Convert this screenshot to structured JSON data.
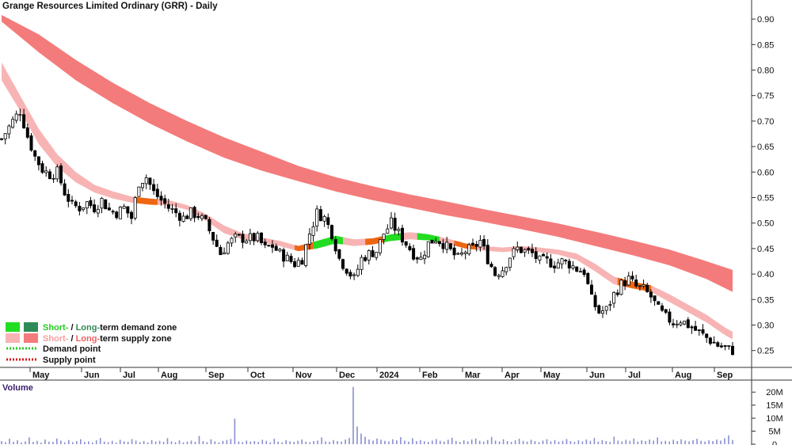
{
  "chart_data": {
    "type": "candlestick",
    "title": "Grange Resources Limited Ordinary (GRR) - Daily",
    "price_axis": {
      "ticks": [
        "0.90",
        "0.85",
        "0.80",
        "0.75",
        "0.70",
        "0.65",
        "0.60",
        "0.55",
        "0.50",
        "0.45",
        "0.40",
        "0.35",
        "0.30",
        "0.25"
      ],
      "tick_values": [
        0.9,
        0.85,
        0.8,
        0.75,
        0.7,
        0.65,
        0.6,
        0.55,
        0.5,
        0.45,
        0.4,
        0.35,
        0.3,
        0.25
      ],
      "ylim": [
        0.22,
        0.925
      ]
    },
    "volume_axis": {
      "title": "Volume",
      "ticks": [
        "20M",
        "15M",
        "10M",
        "5M",
        "0"
      ],
      "tick_values": [
        20,
        15,
        10,
        5,
        0
      ],
      "ylim": [
        0,
        24
      ]
    },
    "months": [
      "May",
      "Jun",
      "Jul",
      "Aug",
      "Sep",
      "Oct",
      "Nov",
      "Dec",
      "2024",
      "Feb",
      "Mar",
      "Apr",
      "May",
      "Jun",
      "Jul",
      "Aug",
      "Sep"
    ],
    "close_path": [
      [
        0,
        0.665
      ],
      [
        3,
        0.7
      ],
      [
        5,
        0.72
      ],
      [
        7,
        0.67
      ],
      [
        9,
        0.63
      ],
      [
        11,
        0.605
      ],
      [
        13,
        0.595
      ],
      [
        15,
        0.6
      ],
      [
        17,
        0.56
      ],
      [
        19,
        0.535
      ],
      [
        21,
        0.53
      ],
      [
        23,
        0.54
      ],
      [
        25,
        0.53
      ],
      [
        27,
        0.545
      ],
      [
        29,
        0.525
      ],
      [
        31,
        0.52
      ],
      [
        33,
        0.53
      ],
      [
        35,
        0.51
      ],
      [
        37,
        0.58
      ],
      [
        39,
        0.59
      ],
      [
        41,
        0.56
      ],
      [
        43,
        0.545
      ],
      [
        45,
        0.53
      ],
      [
        47,
        0.52
      ],
      [
        49,
        0.51
      ],
      [
        51,
        0.52
      ],
      [
        53,
        0.515
      ],
      [
        55,
        0.5
      ],
      [
        57,
        0.47
      ],
      [
        59,
        0.44
      ],
      [
        61,
        0.46
      ],
      [
        63,
        0.47
      ],
      [
        65,
        0.47
      ],
      [
        67,
        0.47
      ],
      [
        69,
        0.47
      ],
      [
        71,
        0.45
      ],
      [
        73,
        0.455
      ],
      [
        75,
        0.44
      ],
      [
        77,
        0.43
      ],
      [
        79,
        0.42
      ],
      [
        81,
        0.43
      ],
      [
        83,
        0.48
      ],
      [
        85,
        0.52
      ],
      [
        87,
        0.51
      ],
      [
        89,
        0.48
      ],
      [
        91,
        0.43
      ],
      [
        93,
        0.41
      ],
      [
        95,
        0.39
      ],
      [
        97,
        0.43
      ],
      [
        99,
        0.44
      ],
      [
        101,
        0.445
      ],
      [
        103,
        0.48
      ],
      [
        105,
        0.5
      ],
      [
        107,
        0.48
      ],
      [
        109,
        0.46
      ],
      [
        111,
        0.44
      ],
      [
        113,
        0.43
      ],
      [
        115,
        0.46
      ],
      [
        117,
        0.47
      ],
      [
        119,
        0.46
      ],
      [
        121,
        0.445
      ],
      [
        123,
        0.43
      ],
      [
        125,
        0.445
      ],
      [
        127,
        0.45
      ],
      [
        129,
        0.465
      ],
      [
        131,
        0.43
      ],
      [
        133,
        0.4
      ],
      [
        135,
        0.41
      ],
      [
        137,
        0.435
      ],
      [
        139,
        0.45
      ],
      [
        141,
        0.445
      ],
      [
        143,
        0.44
      ],
      [
        145,
        0.425
      ],
      [
        147,
        0.425
      ],
      [
        149,
        0.42
      ],
      [
        151,
        0.425
      ],
      [
        153,
        0.42
      ],
      [
        155,
        0.41
      ],
      [
        157,
        0.405
      ],
      [
        159,
        0.35
      ],
      [
        161,
        0.325
      ],
      [
        163,
        0.33
      ],
      [
        165,
        0.36
      ],
      [
        167,
        0.38
      ],
      [
        169,
        0.39
      ],
      [
        171,
        0.375
      ],
      [
        173,
        0.37
      ],
      [
        175,
        0.355
      ],
      [
        177,
        0.33
      ],
      [
        179,
        0.315
      ],
      [
        181,
        0.305
      ],
      [
        183,
        0.31
      ],
      [
        185,
        0.3
      ],
      [
        187,
        0.29
      ],
      [
        189,
        0.28
      ],
      [
        191,
        0.27
      ],
      [
        193,
        0.26
      ],
      [
        195,
        0.255
      ],
      [
        197,
        0.25
      ]
    ],
    "volume_values": [
      1.2,
      0.8,
      2.1,
      0.9,
      1.5,
      0.7,
      1.1,
      2.6,
      0.9,
      1.3,
      0.6,
      1.8,
      1.0,
      0.9,
      2.2,
      1.4,
      0.7,
      1.6,
      0.8,
      1.2,
      1.9,
      0.9,
      1.1,
      0.7,
      1.5,
      2.4,
      1.0,
      0.8,
      1.3,
      0.6,
      1.7,
      1.1,
      0.9,
      2.0,
      1.4,
      0.8,
      1.2,
      0.7,
      1.6,
      1.0,
      1.3,
      0.9,
      2.3,
      1.1,
      0.8,
      1.5,
      0.7,
      1.0,
      1.4,
      0.9,
      3.2,
      1.2,
      0.8,
      1.9,
      1.1,
      0.7,
      1.3,
      1.6,
      2.0,
      9.8,
      1.1,
      0.8,
      1.4,
      1.0,
      1.2,
      0.9,
      1.7,
      1.3,
      0.8,
      2.1,
      1.0,
      0.7,
      1.5,
      1.1,
      0.9,
      1.3,
      1.8,
      1.0,
      0.8,
      1.2,
      1.4,
      2.6,
      1.1,
      0.9,
      1.6,
      1.2,
      1.0,
      1.8,
      2.4,
      22.0,
      6.8,
      4.1,
      2.9,
      1.8,
      1.4,
      2.2,
      1.7,
      1.3,
      1.1,
      1.9,
      1.5,
      2.7,
      1.4,
      1.0,
      2.3,
      1.2,
      1.6,
      1.1,
      0.9,
      1.4,
      2.0,
      1.3,
      1.0,
      1.7,
      2.5,
      1.2,
      0.9,
      1.5,
      1.1,
      1.8,
      2.2,
      1.3,
      1.0,
      1.6,
      2.8,
      1.4,
      1.1,
      1.9,
      1.2,
      0.9,
      1.5,
      2.1,
      1.3,
      1.0,
      1.7,
      1.2,
      0.8,
      1.4,
      1.9,
      1.1,
      1.6,
      1.0,
      1.3,
      2.0,
      1.2,
      0.9,
      1.5,
      1.1,
      1.8,
      1.3,
      2.4,
      1.0,
      1.6,
      1.2,
      0.9,
      2.9,
      1.4,
      1.1,
      1.7,
      1.3,
      2.2,
      1.0,
      1.5,
      1.2,
      1.8,
      1.4,
      2.6,
      1.1,
      1.3,
      1.0,
      1.7,
      1.2,
      1.9,
      1.4,
      1.1,
      1.6,
      2.1,
      1.3,
      1.0,
      1.5,
      1.2,
      1.8,
      1.4,
      2.3,
      3.4,
      1.6
    ],
    "long_term_supply_zone": {
      "x": [
        0,
        10,
        20,
        30,
        40,
        50,
        60,
        70,
        80,
        90,
        100,
        110,
        120,
        130,
        140,
        150,
        160,
        170,
        180,
        190,
        197
      ],
      "top": [
        0.908,
        0.87,
        0.82,
        0.775,
        0.735,
        0.7,
        0.668,
        0.64,
        0.612,
        0.59,
        0.572,
        0.556,
        0.542,
        0.527,
        0.513,
        0.499,
        0.483,
        0.466,
        0.448,
        0.425,
        0.408
      ],
      "bottom": [
        0.895,
        0.835,
        0.78,
        0.735,
        0.695,
        0.66,
        0.628,
        0.603,
        0.582,
        0.562,
        0.545,
        0.53,
        0.515,
        0.502,
        0.488,
        0.473,
        0.455,
        0.437,
        0.417,
        0.39,
        0.365
      ]
    },
    "short_term_supply_zone": {
      "x": [
        0,
        5,
        10,
        15,
        20,
        25,
        30,
        35,
        40,
        45,
        50,
        55,
        60,
        65,
        70,
        75,
        80,
        85,
        90,
        95,
        100,
        105,
        110,
        115,
        120,
        125,
        130,
        135,
        140,
        145,
        150,
        155,
        160,
        165,
        170,
        175,
        180,
        185,
        190,
        195,
        197
      ],
      "top": [
        0.815,
        0.75,
        0.685,
        0.635,
        0.6,
        0.575,
        0.562,
        0.552,
        0.548,
        0.545,
        0.535,
        0.518,
        0.495,
        0.48,
        0.472,
        0.465,
        0.455,
        0.465,
        0.475,
        0.468,
        0.47,
        0.478,
        0.482,
        0.478,
        0.47,
        0.46,
        0.455,
        0.452,
        0.455,
        0.452,
        0.448,
        0.44,
        0.42,
        0.395,
        0.385,
        0.378,
        0.36,
        0.34,
        0.32,
        0.295,
        0.287
      ],
      "bottom": [
        0.78,
        0.72,
        0.655,
        0.61,
        0.58,
        0.56,
        0.548,
        0.54,
        0.536,
        0.535,
        0.526,
        0.505,
        0.48,
        0.468,
        0.462,
        0.455,
        0.445,
        0.45,
        0.46,
        0.455,
        0.458,
        0.465,
        0.468,
        0.466,
        0.46,
        0.45,
        0.446,
        0.443,
        0.446,
        0.443,
        0.438,
        0.428,
        0.405,
        0.38,
        0.372,
        0.365,
        0.345,
        0.325,
        0.305,
        0.28,
        0.272
      ]
    },
    "short_term_demand_segments": [
      [
        84,
        92
      ],
      [
        102,
        108
      ],
      [
        112,
        118
      ]
    ],
    "supply_point_segments": [
      [
        36,
        42
      ],
      [
        79,
        84
      ],
      [
        98,
        103
      ],
      [
        122,
        128
      ],
      [
        166,
        175
      ]
    ],
    "legend": {
      "demand_zone": {
        "short": "Short-",
        "sep": " / ",
        "long": "Long-",
        "rest": "term demand zone"
      },
      "supply_zone": {
        "short": "Short-",
        "sep": " / ",
        "long": "Long-",
        "rest": "term supply zone"
      },
      "demand_point": "Demand point",
      "supply_point": "Supply point"
    },
    "colors": {
      "candle": "#000000",
      "short_demand": "#22dd22",
      "long_demand": "#2e8b57",
      "short_supply": "#f8b4b4",
      "long_supply": "#f47b7b",
      "supply_point": "#ee6611",
      "demand_dot": "#22cc22",
      "supply_dot": "#dd1111",
      "volume_bar": "#8a8fd0",
      "volume_title": "#3b1d6b"
    },
    "grid": false,
    "legend_placement": "bottom-left"
  }
}
